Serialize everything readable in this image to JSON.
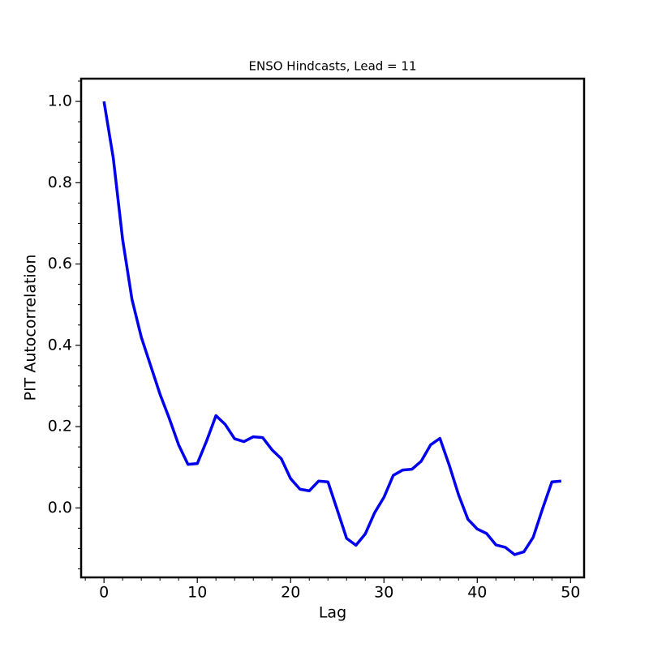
{
  "chart_data": {
    "type": "line",
    "title": "ENSO Hindcasts, Lead = 11",
    "xlabel": "Lag",
    "ylabel": "PIT Autocorrelation",
    "x": [
      0,
      1,
      2,
      3,
      4,
      5,
      6,
      7,
      8,
      9,
      10,
      11,
      12,
      13,
      14,
      15,
      16,
      17,
      18,
      19,
      20,
      21,
      22,
      23,
      24,
      25,
      26,
      27,
      28,
      29,
      30,
      31,
      32,
      33,
      34,
      35,
      36,
      37,
      38,
      39,
      40,
      41,
      42,
      43,
      44,
      45,
      46,
      47,
      48,
      49
    ],
    "series": [
      {
        "color": "#0000ee",
        "values": [
          1.0,
          0.86,
          0.66,
          0.513,
          0.42,
          0.35,
          0.28,
          0.22,
          0.155,
          0.107,
          0.109,
          0.165,
          0.227,
          0.205,
          0.17,
          0.163,
          0.175,
          0.173,
          0.143,
          0.121,
          0.072,
          0.046,
          0.042,
          0.066,
          0.064,
          -0.005,
          -0.075,
          -0.092,
          -0.064,
          -0.012,
          0.026,
          0.08,
          0.093,
          0.095,
          0.115,
          0.155,
          0.171,
          0.105,
          0.032,
          -0.028,
          -0.052,
          -0.063,
          -0.091,
          -0.097,
          -0.115,
          -0.108,
          -0.072,
          -0.002,
          0.064,
          0.066
        ]
      }
    ],
    "xlim": [
      -2.45,
      51.45
    ],
    "ylim": [
      -0.171,
      1.056
    ],
    "xticks": [
      0,
      10,
      20,
      30,
      40,
      50
    ],
    "yticks": [
      {
        "value": 0,
        "label": "0.0"
      },
      0.2,
      0.4,
      0.6,
      0.8,
      {
        "value": 1,
        "label": "1.0"
      }
    ],
    "xminorticks": [
      -2,
      2,
      4,
      6,
      8,
      12,
      14,
      16,
      18,
      22,
      24,
      26,
      28,
      32,
      34,
      36,
      38,
      42,
      44,
      46,
      48
    ],
    "yminorticks": [
      -0.15,
      -0.1,
      -0.05,
      0.05,
      0.1,
      0.15,
      0.25,
      0.3,
      0.35,
      0.45,
      0.5,
      0.55,
      0.65,
      0.7,
      0.75,
      0.85,
      0.9,
      0.95,
      1.05
    ]
  }
}
